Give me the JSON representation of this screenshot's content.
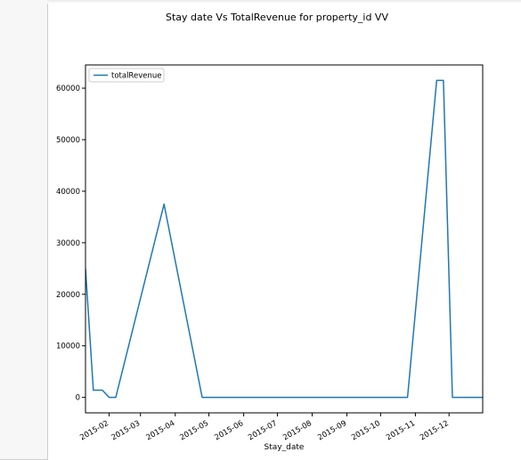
{
  "chart_data": {
    "type": "line",
    "title": "Stay date Vs TotalRevenue for property_id VV",
    "xlabel": "Stay_date",
    "ylabel": "",
    "legend": {
      "placement": "top-left",
      "entries": [
        "totalRevenue"
      ]
    },
    "grid": false,
    "x_range": [
      "2015-01-11",
      "2015-12-31"
    ],
    "ylim": [
      -3000,
      64500
    ],
    "x_ticks": [
      "2015-02",
      "2015-03",
      "2015-04",
      "2015-05",
      "2015-06",
      "2015-07",
      "2015-08",
      "2015-09",
      "2015-10",
      "2015-11",
      "2015-12"
    ],
    "y_ticks": [
      "0",
      "10000",
      "20000",
      "30000",
      "40000",
      "50000",
      "60000"
    ],
    "y_tick_values": [
      0,
      10000,
      20000,
      30000,
      40000,
      50000,
      60000
    ],
    "series": [
      {
        "name": "totalRevenue",
        "color": "#1f77b4",
        "x": [
          "2015-01-11",
          "2015-01-18",
          "2015-01-26",
          "2015-02-01",
          "2015-02-07",
          "2015-03-22",
          "2015-04-25",
          "2015-10-25",
          "2015-11-20",
          "2015-11-26",
          "2015-12-04",
          "2015-12-31"
        ],
        "values": [
          25000,
          1400,
          1400,
          0,
          0,
          37500,
          0,
          0,
          61500,
          61500,
          0,
          0
        ]
      }
    ]
  }
}
